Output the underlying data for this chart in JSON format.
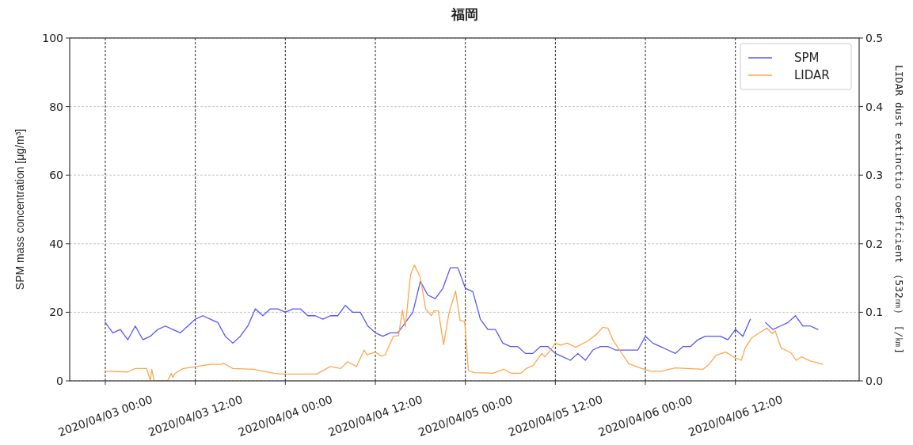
{
  "chart_data": {
    "type": "line",
    "title": "福岡",
    "ylabel": "SPM mass concentration [μg/m³]",
    "y2label": "LIDAR dust extinctio coefficient （532㎚） [/㎞]",
    "xlim": [
      "2020-04-02T19:15",
      "2020-04-07T04:30"
    ],
    "xticks": [
      {
        "value": "2020-04-03T00:00",
        "label": "2020/04/03 00:00"
      },
      {
        "value": "2020-04-03T12:00",
        "label": "2020/04/03 12:00"
      },
      {
        "value": "2020-04-04T00:00",
        "label": "2020/04/04 00:00"
      },
      {
        "value": "2020-04-04T12:00",
        "label": "2020/04/04 12:00"
      },
      {
        "value": "2020-04-05T00:00",
        "label": "2020/04/05 00:00"
      },
      {
        "value": "2020-04-05T12:00",
        "label": "2020/04/05 12:00"
      },
      {
        "value": "2020-04-06T00:00",
        "label": "2020/04/06 00:00"
      },
      {
        "value": "2020-04-06T12:00",
        "label": "2020/04/06 12:00"
      }
    ],
    "ylim": [
      0,
      100
    ],
    "yticks": [
      0,
      20,
      40,
      60,
      80,
      100
    ],
    "y2lim": [
      0,
      0.5
    ],
    "y2ticks": [
      {
        "value": 0,
        "label": "0.0"
      },
      {
        "value": 0.1,
        "label": "0.1"
      },
      {
        "value": 0.2,
        "label": "0.2"
      },
      {
        "value": 0.3,
        "label": "0.3"
      },
      {
        "value": 0.4,
        "label": "0.4"
      },
      {
        "value": 0.5,
        "label": "0.5"
      }
    ],
    "grid": true,
    "legend": "top right",
    "series": [
      {
        "name": "SPM",
        "color": "#5555ff",
        "x": [
          "2020-04-03T00:00",
          "2020-04-03T01:00",
          "2020-04-03T02:00",
          "2020-04-03T03:00",
          "2020-04-03T04:00",
          "2020-04-03T05:00",
          "2020-04-03T06:00",
          "2020-04-03T07:00",
          "2020-04-03T08:00",
          "2020-04-03T09:00",
          "2020-04-03T10:00",
          "2020-04-03T11:00",
          "2020-04-03T12:00",
          "2020-04-03T13:00",
          "2020-04-03T14:00",
          "2020-04-03T15:00",
          "2020-04-03T16:00",
          "2020-04-03T17:00",
          "2020-04-03T18:00",
          "2020-04-03T19:00",
          "2020-04-03T20:00",
          "2020-04-03T21:00",
          "2020-04-03T22:00",
          "2020-04-03T23:00",
          "2020-04-04T00:00",
          "2020-04-04T01:00",
          "2020-04-04T02:00",
          "2020-04-04T03:00",
          "2020-04-04T04:00",
          "2020-04-04T05:00",
          "2020-04-04T06:00",
          "2020-04-04T07:00",
          "2020-04-04T08:00",
          "2020-04-04T09:00",
          "2020-04-04T10:00",
          "2020-04-04T11:00",
          "2020-04-04T12:00",
          "2020-04-04T13:00",
          "2020-04-04T14:00",
          "2020-04-04T15:00",
          "2020-04-04T16:00",
          "2020-04-04T17:00",
          "2020-04-04T18:00",
          "2020-04-04T19:00",
          "2020-04-04T20:00",
          "2020-04-04T21:00",
          "2020-04-04T22:00",
          "2020-04-04T23:00",
          "2020-04-05T00:00",
          "2020-04-05T01:00",
          "2020-04-05T02:00",
          "2020-04-05T03:00",
          "2020-04-05T04:00",
          "2020-04-05T05:00",
          "2020-04-05T06:00",
          "2020-04-05T07:00",
          "2020-04-05T08:00",
          "2020-04-05T09:00",
          "2020-04-05T10:00",
          "2020-04-05T11:00",
          "2020-04-05T12:00",
          "2020-04-05T13:00",
          "2020-04-05T14:00",
          "2020-04-05T15:00",
          "2020-04-05T16:00",
          "2020-04-05T17:00",
          "2020-04-05T18:00",
          "2020-04-05T19:00",
          "2020-04-05T20:00",
          "2020-04-05T21:00",
          "2020-04-05T22:00",
          "2020-04-05T23:00",
          "2020-04-06T00:00",
          "2020-04-06T01:00",
          "2020-04-06T02:00",
          "2020-04-06T03:00",
          "2020-04-06T04:00",
          "2020-04-06T05:00",
          "2020-04-06T06:00",
          "2020-04-06T07:00",
          "2020-04-06T08:00",
          "2020-04-06T09:00",
          "2020-04-06T10:00",
          "2020-04-06T11:00",
          "2020-04-06T12:00",
          "2020-04-06T13:00",
          "2020-04-06T14:00",
          "2020-04-06T15:00",
          "2020-04-06T16:00",
          "2020-04-06T17:00",
          "2020-04-06T18:00",
          "2020-04-06T19:00",
          "2020-04-06T20:00",
          "2020-04-06T21:00",
          "2020-04-06T22:00",
          "2020-04-06T23:00"
        ],
        "values": [
          17,
          14,
          15,
          12,
          16,
          12,
          13,
          15,
          16,
          15,
          14,
          16,
          18,
          19,
          18,
          17,
          13,
          11,
          13,
          16,
          21,
          19,
          21,
          21,
          20,
          21,
          21,
          19,
          19,
          18,
          19,
          19,
          22,
          20,
          20,
          16,
          14,
          13,
          14,
          14,
          17,
          20,
          29,
          25,
          24,
          27,
          33,
          33,
          27,
          26,
          18,
          15,
          15,
          11,
          10,
          10,
          8,
          8,
          10,
          10,
          8,
          7,
          6,
          8,
          6,
          9,
          10,
          10,
          9,
          9,
          9,
          9,
          13,
          11,
          10,
          9,
          8,
          10,
          10,
          12,
          13,
          13,
          13,
          12,
          15,
          13,
          18,
          null,
          17,
          15,
          16,
          17,
          19,
          16,
          16,
          15
        ]
      },
      {
        "name": "LIDAR",
        "color": "#ffa64d",
        "axis": "y2",
        "x": [
          "2020-04-03T00:00",
          "2020-04-03T03:00",
          "2020-04-03T04:00",
          "2020-04-03T05:30",
          "2020-04-03T06:00",
          "2020-04-03T06:12",
          "2020-04-03T06:30",
          "2020-04-03T08:18",
          "2020-04-03T08:48",
          "2020-04-03T09:00",
          "2020-04-03T09:18",
          "2020-04-03T10:24",
          "2020-04-03T12:12",
          "2020-04-03T14:00",
          "2020-04-03T15:30",
          "2020-04-03T15:42",
          "2020-04-03T17:00",
          "2020-04-03T19:42",
          "2020-04-03T22:30",
          "2020-04-03T23:36",
          "2020-04-04T04:12",
          "2020-04-04T06:00",
          "2020-04-04T07:24",
          "2020-04-04T08:18",
          "2020-04-04T09:30",
          "2020-04-04T10:30",
          "2020-04-04T10:54",
          "2020-04-04T12:00",
          "2020-04-04T12:48",
          "2020-04-04T13:18",
          "2020-04-04T14:24",
          "2020-04-04T15:06",
          "2020-04-04T15:36",
          "2020-04-04T16:00",
          "2020-04-04T16:42",
          "2020-04-04T17:12",
          "2020-04-04T18:00",
          "2020-04-04T18:42",
          "2020-04-04T19:30",
          "2020-04-04T19:48",
          "2020-04-04T20:24",
          "2020-04-04T21:06",
          "2020-04-04T21:48",
          "2020-04-04T22:42",
          "2020-04-04T23:18",
          "2020-04-04T23:54",
          "2020-04-05T00:24",
          "2020-04-05T01:12",
          "2020-04-05T03:42",
          "2020-04-05T05:06",
          "2020-04-05T06:06",
          "2020-04-05T07:24",
          "2020-04-05T08:06",
          "2020-04-05T09:00",
          "2020-04-05T10:12",
          "2020-04-05T10:36",
          "2020-04-05T11:18",
          "2020-04-05T12:00",
          "2020-04-05T12:42",
          "2020-04-05T13:36",
          "2020-04-05T14:42",
          "2020-04-05T15:24",
          "2020-04-05T16:18",
          "2020-04-05T17:30",
          "2020-04-05T18:18",
          "2020-04-05T19:00",
          "2020-04-05T19:42",
          "2020-04-05T20:48",
          "2020-04-05T21:48",
          "2020-04-05T23:18",
          "2020-04-06T00:42",
          "2020-04-06T02:06",
          "2020-04-06T04:00",
          "2020-04-06T07:42",
          "2020-04-06T08:30",
          "2020-04-06T09:24",
          "2020-04-06T10:42",
          "2020-04-06T11:54",
          "2020-04-06T12:48",
          "2020-04-06T13:18",
          "2020-04-06T14:12",
          "2020-04-06T16:12",
          "2020-04-06T16:54",
          "2020-04-06T17:18",
          "2020-04-06T18:06",
          "2020-04-06T19:24",
          "2020-04-06T20:06",
          "2020-04-06T20:48",
          "2020-04-06T22:00",
          "2020-04-06T22:42",
          "2020-04-06T23:36"
        ],
        "values": [
          0.014,
          0.013,
          0.018,
          0.018,
          0.001,
          0.017,
          0,
          0,
          0.011,
          0.005,
          0.011,
          0.018,
          0.021,
          0.024,
          0.024,
          0.026,
          0.018,
          0.017,
          0.011,
          0.01,
          0.01,
          0.021,
          0.018,
          0.028,
          0.021,
          0.045,
          0.038,
          0.042,
          0.036,
          0.038,
          0.065,
          0.066,
          0.103,
          0.079,
          0.155,
          0.169,
          0.151,
          0.105,
          0.095,
          0.102,
          0.102,
          0.053,
          0.098,
          0.131,
          0.088,
          0.087,
          0.015,
          0.012,
          0.011,
          0.017,
          0.011,
          0.011,
          0.018,
          0.022,
          0.04,
          0.035,
          0.044,
          0.055,
          0.052,
          0.055,
          0.049,
          0.053,
          0.058,
          0.068,
          0.078,
          0.077,
          0.059,
          0.041,
          0.025,
          0.019,
          0.014,
          0.014,
          0.019,
          0.017,
          0.024,
          0.037,
          0.042,
          0.034,
          0.03,
          0.048,
          0.063,
          0.077,
          0.069,
          0.073,
          0.048,
          0.041,
          0.03,
          0.035,
          0.029,
          0.027,
          0.024
        ]
      }
    ]
  }
}
